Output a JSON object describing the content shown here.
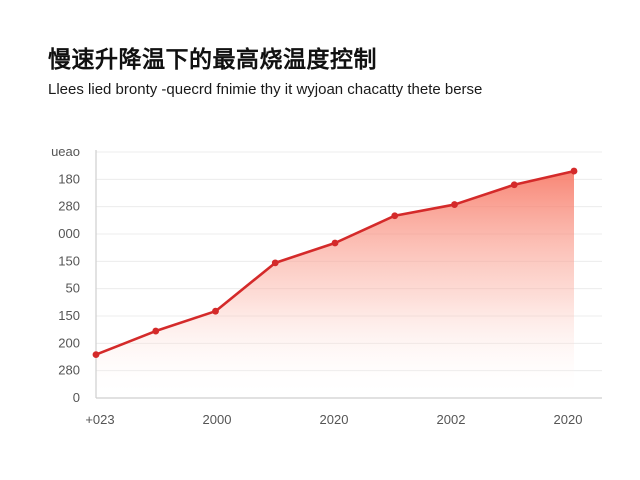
{
  "header": {
    "title": "慢速升降温下的最高烧温度控制",
    "subtitle": "Llees lied bronty -quecrd fnimie thy it wyjoan chacatty thete berse"
  },
  "chart_data": {
    "type": "area",
    "title": "慢速升降温下的最高烧温度控制",
    "subtitle": "Llees lied bronty -quecrd fnimie thy it wyjoan chacatty thete berse",
    "xlabel": "",
    "ylabel": "",
    "grid": true,
    "x_tick_labels": [
      "+023",
      "2000",
      "2020",
      "2002",
      "2020"
    ],
    "y_tick_labels": [
      "ueao",
      "180",
      "280",
      "000",
      "150",
      "50",
      "150",
      "200",
      "280",
      "0"
    ],
    "y_tick_label_colors": [
      "#d42a2a",
      "#555555",
      "#555555",
      "#d42a2a",
      "#555555",
      "#555555",
      "#555555",
      "#555555",
      "#555555",
      "#555555"
    ],
    "ylim": [
      0,
      100
    ],
    "series": [
      {
        "color": "#d42a2a",
        "x": [
          0,
          1,
          2,
          3,
          4,
          5,
          6,
          7,
          8
        ],
        "values": [
          17.5,
          27,
          35,
          54.5,
          62.5,
          73.5,
          78,
          86,
          91.5
        ]
      }
    ],
    "colors": {
      "line": "#d42a2a",
      "fill_top": "#f7705c",
      "grid": "#ececec",
      "axis": "#cfcfcf"
    }
  }
}
